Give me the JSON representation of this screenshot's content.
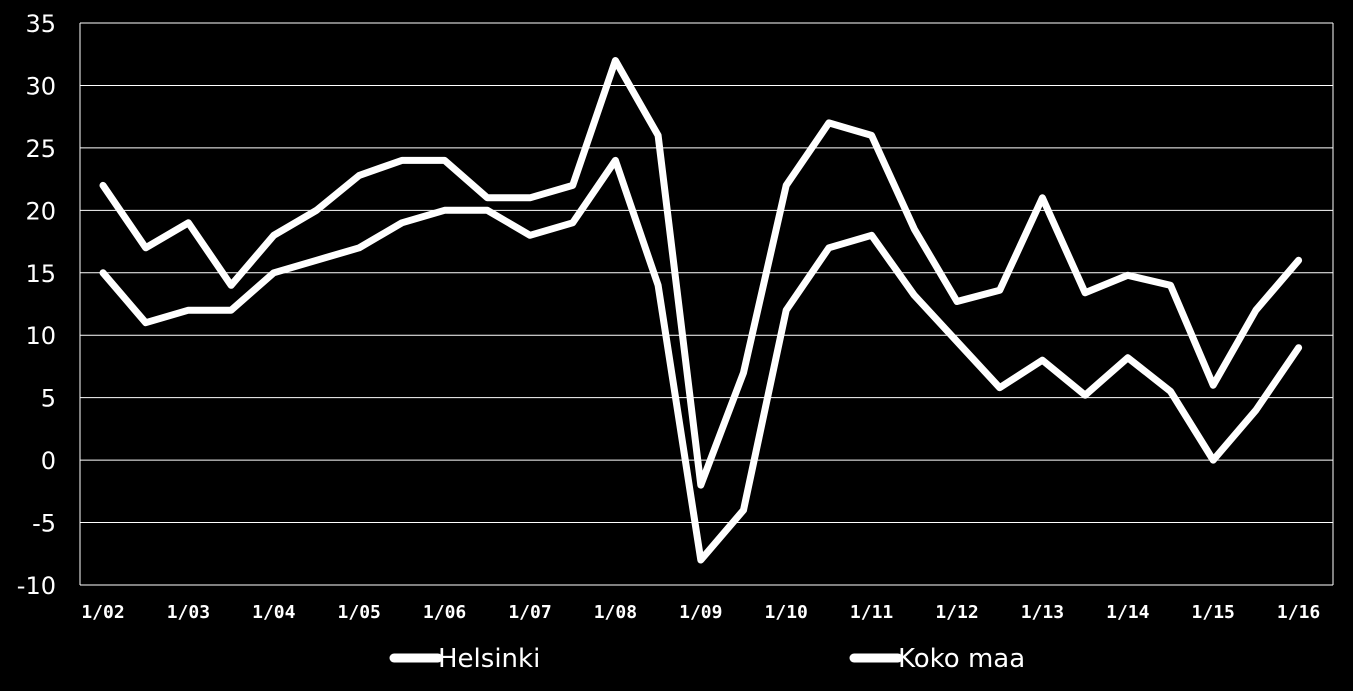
{
  "chart_data": {
    "type": "line",
    "ylim": [
      -10,
      35
    ],
    "y_ticks": [
      35,
      30,
      25,
      20,
      15,
      10,
      5,
      0,
      -5,
      -10
    ],
    "y_tick_labels": [
      "35",
      "30",
      "25",
      "20",
      "15",
      "10",
      "5",
      "0",
      "-5",
      "-10"
    ],
    "x_tick_labels": [
      "1/02",
      "1/03",
      "1/04",
      "1/05",
      "1/06",
      "1/07",
      "1/08",
      "1/09",
      "1/10",
      "1/11",
      "1/12",
      "1/13",
      "1/14",
      "1/15",
      "1/16"
    ],
    "grid": true,
    "legend_position": "bottom",
    "background": "#000000",
    "line_color": "#ffffff",
    "series": [
      {
        "name": "Helsinki",
        "values": [
          15,
          11,
          12,
          12,
          15,
          16,
          17,
          19,
          20,
          20,
          18,
          19,
          24,
          14,
          -8,
          -4,
          12,
          17,
          18,
          13.2,
          9.5,
          5.8,
          8,
          5.2,
          8.2,
          5.5,
          0,
          4,
          9
        ]
      },
      {
        "name": "Koko maa",
        "values": [
          22,
          17,
          19,
          14,
          18,
          20,
          22.8,
          24,
          24,
          21,
          21,
          22,
          32,
          26,
          -2,
          7,
          22,
          27,
          26,
          18.5,
          12.7,
          13.6,
          21,
          13.4,
          14.8,
          14,
          6,
          12,
          16
        ]
      }
    ]
  }
}
